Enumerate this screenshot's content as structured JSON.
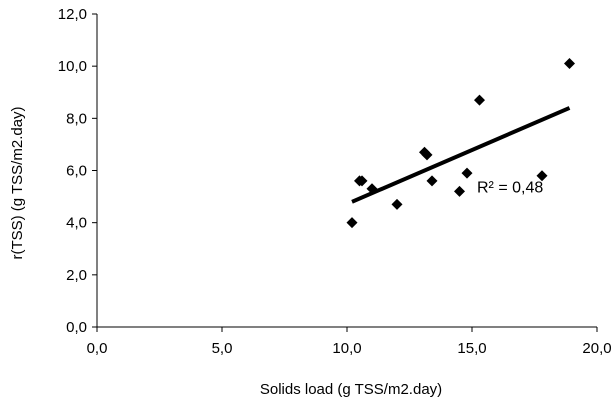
{
  "chart_data": {
    "type": "scatter",
    "xlabel": "Solids load (g TSS/m2.day)",
    "ylabel": "r(TSS) (g TSS/m2.day)",
    "xlim": [
      0,
      20
    ],
    "ylim": [
      0,
      12
    ],
    "xticks": [
      0,
      5,
      10,
      15,
      20
    ],
    "yticks": [
      0,
      2,
      4,
      6,
      8,
      10,
      12
    ],
    "xtick_labels": [
      "0,0",
      "5,0",
      "10,0",
      "15,0",
      "20,0"
    ],
    "ytick_labels": [
      "0,0",
      "2,0",
      "4,0",
      "6,0",
      "8,0",
      "10,0",
      "12,0"
    ],
    "grid": false,
    "legend": "none",
    "series": [
      {
        "marker": "diamond",
        "color": "#000000",
        "points": [
          {
            "x": 10.2,
            "y": 4.0
          },
          {
            "x": 10.5,
            "y": 5.6
          },
          {
            "x": 10.6,
            "y": 5.6
          },
          {
            "x": 11.0,
            "y": 5.3
          },
          {
            "x": 12.0,
            "y": 4.7
          },
          {
            "x": 13.1,
            "y": 6.7
          },
          {
            "x": 13.2,
            "y": 6.6
          },
          {
            "x": 13.4,
            "y": 5.6
          },
          {
            "x": 14.5,
            "y": 5.2
          },
          {
            "x": 14.8,
            "y": 5.9
          },
          {
            "x": 15.3,
            "y": 8.7
          },
          {
            "x": 17.8,
            "y": 5.8
          },
          {
            "x": 18.9,
            "y": 10.1
          }
        ]
      }
    ],
    "trendline": {
      "type": "linear",
      "x": [
        10.2,
        18.9
      ],
      "y": [
        4.8,
        8.4
      ],
      "color": "#000000"
    },
    "annotations": [
      {
        "text": "R² = 0,48",
        "x": 15.2,
        "y": 5.15
      }
    ]
  }
}
